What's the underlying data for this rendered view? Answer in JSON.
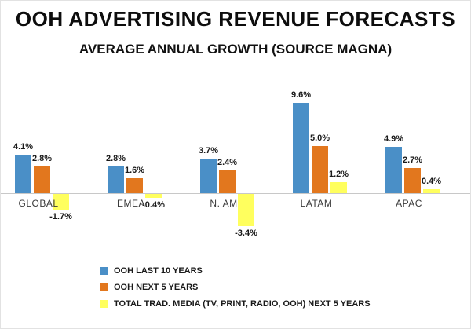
{
  "title": "OOH ADVERTISING REVENUE FORECASTS",
  "subtitle": "AVERAGE ANNUAL GROWTH (SOURCE MAGNA)",
  "chart_data": {
    "type": "bar",
    "categories": [
      "GLOBAL",
      "EMEA",
      "N. AM",
      "LATAM",
      "APAC"
    ],
    "series": [
      {
        "name": "OOH LAST 10 YEARS",
        "color": "#4a8fc7",
        "values": [
          4.1,
          2.8,
          3.7,
          9.6,
          4.9
        ]
      },
      {
        "name": "OOH NEXT 5 YEARS",
        "color": "#e2771e",
        "values": [
          2.8,
          1.6,
          2.4,
          5.0,
          2.7
        ]
      },
      {
        "name": "TOTAL TRAD. MEDIA (TV, PRINT, RADIO, OOH) NEXT 5 YEARS",
        "color": "#ffff5e",
        "values": [
          -1.7,
          -0.4,
          -3.4,
          1.2,
          0.4
        ]
      }
    ],
    "value_suffix": "%",
    "ylim": [
      -4,
      10
    ],
    "grid": false,
    "legend_position": "bottom-left"
  }
}
